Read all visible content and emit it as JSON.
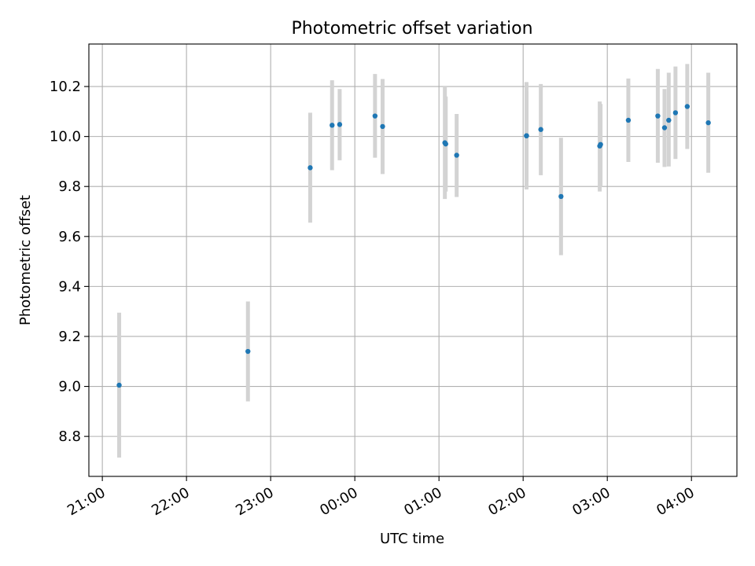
{
  "chart_data": {
    "type": "scatter",
    "title": "Photometric offset variation",
    "xlabel": "UTC time",
    "ylabel": "Photometric offset",
    "x_unit": "hours (UTC, continuing past midnight)",
    "xlim": [
      20.84,
      28.54
    ],
    "ylim": [
      8.64,
      10.37
    ],
    "x_ticks": [
      {
        "value": 21,
        "label": "21:00"
      },
      {
        "value": 22,
        "label": "22:00"
      },
      {
        "value": 23,
        "label": "23:00"
      },
      {
        "value": 24,
        "label": "00:00"
      },
      {
        "value": 25,
        "label": "01:00"
      },
      {
        "value": 26,
        "label": "02:00"
      },
      {
        "value": 27,
        "label": "03:00"
      },
      {
        "value": 28,
        "label": "04:00"
      }
    ],
    "y_ticks": [
      {
        "value": 8.8,
        "label": "8.8"
      },
      {
        "value": 9.0,
        "label": "9.0"
      },
      {
        "value": 9.2,
        "label": "9.2"
      },
      {
        "value": 9.4,
        "label": "9.4"
      },
      {
        "value": 9.6,
        "label": "9.6"
      },
      {
        "value": 9.8,
        "label": "9.8"
      },
      {
        "value": 10.0,
        "label": "10.0"
      },
      {
        "value": 10.2,
        "label": "10.2"
      }
    ],
    "grid": true,
    "colors": {
      "points": "#1f77b4",
      "errorbars": "#d3d3d3",
      "grid": "#b0b0b0"
    },
    "points": [
      {
        "x": 21.2,
        "y": 9.005,
        "ylo": 8.715,
        "yhi": 9.295
      },
      {
        "x": 22.73,
        "y": 9.14,
        "ylo": 8.94,
        "yhi": 9.34
      },
      {
        "x": 23.47,
        "y": 9.875,
        "ylo": 9.655,
        "yhi": 10.095
      },
      {
        "x": 23.73,
        "y": 10.045,
        "ylo": 9.865,
        "yhi": 10.225
      },
      {
        "x": 23.82,
        "y": 10.048,
        "ylo": 9.905,
        "yhi": 10.19
      },
      {
        "x": 24.24,
        "y": 10.082,
        "ylo": 9.915,
        "yhi": 10.25
      },
      {
        "x": 24.33,
        "y": 10.04,
        "ylo": 9.85,
        "yhi": 10.23
      },
      {
        "x": 25.07,
        "y": 9.975,
        "ylo": 9.75,
        "yhi": 10.2
      },
      {
        "x": 25.08,
        "y": 9.97,
        "ylo": 9.78,
        "yhi": 10.16
      },
      {
        "x": 25.21,
        "y": 9.925,
        "ylo": 9.758,
        "yhi": 10.09
      },
      {
        "x": 26.04,
        "y": 10.003,
        "ylo": 9.788,
        "yhi": 10.218
      },
      {
        "x": 26.04,
        "y": 10.003,
        "ylo": 9.82,
        "yhi": 10.18
      },
      {
        "x": 26.21,
        "y": 10.028,
        "ylo": 9.845,
        "yhi": 10.21
      },
      {
        "x": 26.45,
        "y": 9.76,
        "ylo": 9.525,
        "yhi": 9.995
      },
      {
        "x": 26.91,
        "y": 9.962,
        "ylo": 9.78,
        "yhi": 10.14
      },
      {
        "x": 26.92,
        "y": 9.968,
        "ylo": 9.8,
        "yhi": 10.13
      },
      {
        "x": 27.25,
        "y": 10.065,
        "ylo": 9.898,
        "yhi": 10.232
      },
      {
        "x": 27.6,
        "y": 10.082,
        "ylo": 9.895,
        "yhi": 10.27
      },
      {
        "x": 27.68,
        "y": 10.035,
        "ylo": 9.878,
        "yhi": 10.19
      },
      {
        "x": 27.73,
        "y": 10.065,
        "ylo": 9.88,
        "yhi": 10.255
      },
      {
        "x": 27.81,
        "y": 10.095,
        "ylo": 9.91,
        "yhi": 10.28
      },
      {
        "x": 27.95,
        "y": 10.12,
        "ylo": 9.95,
        "yhi": 10.29
      },
      {
        "x": 28.2,
        "y": 10.055,
        "ylo": 9.855,
        "yhi": 10.255
      }
    ]
  }
}
